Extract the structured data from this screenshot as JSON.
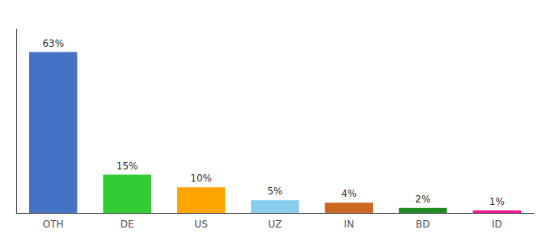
{
  "chart_data": {
    "type": "bar",
    "categories": [
      "OTH",
      "DE",
      "US",
      "UZ",
      "IN",
      "BD",
      "ID"
    ],
    "values": [
      63,
      15,
      10,
      5,
      4,
      2,
      1
    ],
    "value_labels": [
      "63%",
      "15%",
      "10%",
      "5%",
      "4%",
      "2%",
      "1%"
    ],
    "colors": [
      "#4472C4",
      "#33CC33",
      "#FFA500",
      "#87CEEB",
      "#CD6820",
      "#228B22",
      "#FF1493"
    ],
    "ylim": [
      0,
      72
    ],
    "data_labels": true,
    "tick_labels": "x",
    "grid": false
  }
}
